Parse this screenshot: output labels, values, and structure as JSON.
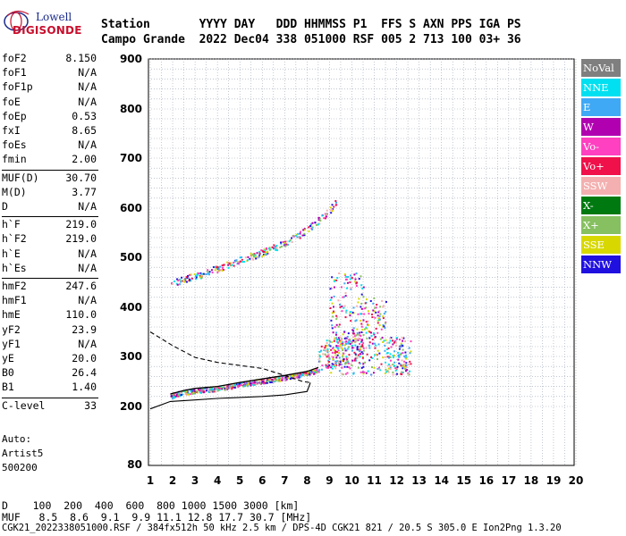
{
  "logo": {
    "line1": "Lowell",
    "line2": "DIGISONDE"
  },
  "header": {
    "row1": "Station       YYYY DAY   DDD HHMMSS P1  FFS S AXN PPS IGA PS",
    "row2": "Campo Grande  2022 Dec04 338 051000 RSF 005 2 713 100 03+ 36"
  },
  "params": [
    {
      "name": "foF2",
      "value": "8.150"
    },
    {
      "name": "foF1",
      "value": "N/A"
    },
    {
      "name": "foF1p",
      "value": "N/A"
    },
    {
      "name": "foE",
      "value": "N/A"
    },
    {
      "name": "foEp",
      "value": "0.53"
    },
    {
      "name": "fxI",
      "value": "8.65"
    },
    {
      "name": "foEs",
      "value": "N/A"
    },
    {
      "name": "fmin",
      "value": "2.00"
    },
    {
      "name": "MUF(D)",
      "value": "30.70"
    },
    {
      "name": "M(D)",
      "value": "3.77"
    },
    {
      "name": "D",
      "value": "N/A"
    },
    {
      "name": "h`F",
      "value": "219.0"
    },
    {
      "name": "h`F2",
      "value": "219.0"
    },
    {
      "name": "h`E",
      "value": "N/A"
    },
    {
      "name": "h`Es",
      "value": "N/A"
    },
    {
      "name": "hmF2",
      "value": "247.6"
    },
    {
      "name": "hmF1",
      "value": "N/A"
    },
    {
      "name": "hmE",
      "value": "110.0"
    },
    {
      "name": "yF2",
      "value": "23.9"
    },
    {
      "name": "yF1",
      "value": "N/A"
    },
    {
      "name": "yE",
      "value": "20.0"
    },
    {
      "name": "B0",
      "value": "26.4"
    },
    {
      "name": "B1",
      "value": "1.40"
    },
    {
      "name": "C-level",
      "value": "33"
    }
  ],
  "auto": {
    "line1": "Auto:",
    "line2": "Artist5",
    "line3": "500200"
  },
  "bottom": {
    "d_row": "D    100  200  400  600  800 1000 1500 3000 [km]",
    "muf_row": "MUF   8.5  8.6  9.1  9.9 11.1 12.8 17.7 30.7 [MHz]",
    "footer": "CGK21_2022338051000.RSF / 384fx512h 50 kHz 2.5 km / DPS-4D CGK21 821 / 20.5 S 305.0 E Ion2Png 1.3.20"
  },
  "legend": [
    {
      "label": "NoVal",
      "color": "#7f7f7f"
    },
    {
      "label": "NNE",
      "color": "#00e0f0"
    },
    {
      "label": "E",
      "color": "#3fa9f5"
    },
    {
      "label": "W",
      "color": "#b000b0"
    },
    {
      "label": "Vo-",
      "color": "#ff40c0"
    },
    {
      "label": "Vo+",
      "color": "#f0104a"
    },
    {
      "label": "SSW",
      "color": "#f4b0b0"
    },
    {
      "label": "X-",
      "color": "#007a10"
    },
    {
      "label": "X+",
      "color": "#86c060"
    },
    {
      "label": "SSE",
      "color": "#d8d800"
    },
    {
      "label": "NNW",
      "color": "#2010e0"
    }
  ],
  "chart_data": {
    "type": "scatter",
    "title": "",
    "xlabel": "",
    "ylabel": "",
    "xlim": [
      1,
      20
    ],
    "ylim": [
      80,
      900
    ],
    "x_ticks": [
      1,
      2,
      3,
      4,
      5,
      6,
      7,
      8,
      9,
      10,
      11,
      12,
      13,
      14,
      15,
      16,
      17,
      18,
      19,
      20
    ],
    "y_ticks": [
      80,
      200,
      300,
      400,
      500,
      600,
      700,
      800,
      900
    ],
    "y_scale": "ionogram height scale (km)",
    "grid": true,
    "legend_position": "right",
    "series": [
      {
        "name": "F-trace (o-mode echoes)",
        "points": [
          [
            1.9,
            225
          ],
          [
            2.5,
            232
          ],
          [
            3.0,
            236
          ],
          [
            4.0,
            240
          ],
          [
            5.0,
            248
          ],
          [
            6.0,
            255
          ],
          [
            7.0,
            262
          ],
          [
            8.0,
            270
          ],
          [
            8.5,
            278
          ],
          [
            9.0,
            285
          ],
          [
            9.5,
            292
          ],
          [
            10.0,
            298
          ],
          [
            10.5,
            305
          ]
        ]
      },
      {
        "name": "multi-hop F trace",
        "points": [
          [
            1.9,
            448
          ],
          [
            3.0,
            462
          ],
          [
            4.0,
            478
          ],
          [
            5.0,
            494
          ],
          [
            6.0,
            510
          ],
          [
            7.0,
            528
          ],
          [
            8.0,
            556
          ],
          [
            9.0,
            595
          ],
          [
            9.3,
            615
          ]
        ]
      },
      {
        "name": "vertical spread near 9-12 MHz",
        "points": [
          [
            9.0,
            260
          ],
          [
            9.0,
            460
          ],
          [
            10.0,
            270
          ],
          [
            10.0,
            470
          ],
          [
            11.0,
            275
          ],
          [
            11.0,
            420
          ],
          [
            12.0,
            285
          ],
          [
            12.0,
            360
          ],
          [
            12.6,
            300
          ]
        ]
      }
    ],
    "profile_curve": [
      [
        1.0,
        195
      ],
      [
        1.9,
        210
      ],
      [
        3.0,
        213
      ],
      [
        4.0,
        216
      ],
      [
        5.0,
        218
      ],
      [
        6.0,
        220
      ],
      [
        7.0,
        223
      ],
      [
        8.0,
        230
      ],
      [
        8.15,
        247.6
      ]
    ],
    "profile_dashed": [
      [
        1.0,
        350
      ],
      [
        2.0,
        322
      ],
      [
        3.0,
        298
      ],
      [
        4.0,
        288
      ],
      [
        5.0,
        282
      ],
      [
        6.0,
        276
      ],
      [
        7.0,
        262
      ],
      [
        7.8,
        250
      ],
      [
        8.15,
        247.6
      ]
    ]
  }
}
